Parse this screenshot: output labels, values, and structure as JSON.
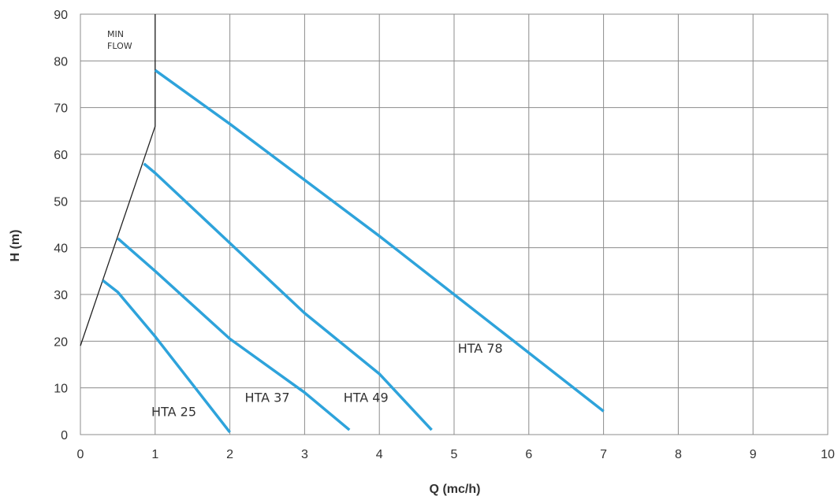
{
  "chart_data": {
    "type": "line",
    "xlabel": "Q (mc/h)",
    "ylabel": "H (m)",
    "xlim": [
      0,
      10
    ],
    "ylim": [
      0,
      90
    ],
    "x_ticks": [
      0,
      1,
      2,
      3,
      4,
      5,
      6,
      7,
      8,
      9,
      10
    ],
    "y_ticks": [
      0,
      10,
      20,
      30,
      40,
      50,
      60,
      70,
      80,
      90
    ],
    "grid": true,
    "colors": {
      "series": "#2ea3db",
      "min_flow": "#222222",
      "grid": "#8c8c8c"
    },
    "series": [
      {
        "name": "HTA 25",
        "points": [
          [
            0.3,
            33
          ],
          [
            0.5,
            30.5
          ],
          [
            1.0,
            21
          ],
          [
            2.0,
            0.5
          ]
        ]
      },
      {
        "name": "HTA 37",
        "points": [
          [
            0.5,
            42
          ],
          [
            1.0,
            35
          ],
          [
            2.0,
            20.5
          ],
          [
            3.0,
            9
          ],
          [
            3.6,
            1
          ]
        ]
      },
      {
        "name": "HTA 49",
        "points": [
          [
            0.85,
            58
          ],
          [
            1.0,
            56
          ],
          [
            2.0,
            41
          ],
          [
            3.0,
            26
          ],
          [
            4.0,
            13
          ],
          [
            4.7,
            1
          ]
        ]
      },
      {
        "name": "HTA 78",
        "points": [
          [
            1.0,
            78
          ],
          [
            2.0,
            66.5
          ],
          [
            3.0,
            54.5
          ],
          [
            4.0,
            42.5
          ],
          [
            5.0,
            30
          ],
          [
            6.0,
            17.5
          ],
          [
            7.0,
            5
          ]
        ]
      }
    ],
    "min_flow_line": {
      "label_lines": [
        "MIN",
        "FLOW"
      ],
      "points": [
        [
          0.0,
          19
        ],
        [
          1.0,
          66
        ],
        [
          1.0,
          90
        ]
      ]
    }
  }
}
